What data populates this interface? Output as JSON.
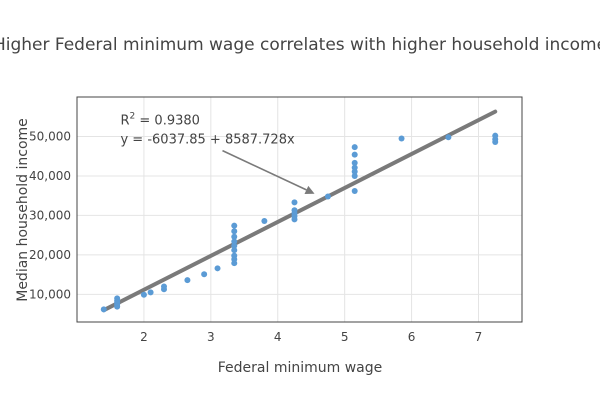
{
  "chart_data": {
    "type": "scatter",
    "title": "Higher Federal minimum wage correlates with higher household income",
    "xlabel": "Federal minimum wage",
    "ylabel": "Median household income",
    "xlim": [
      1.0,
      7.65
    ],
    "ylim": [
      3000,
      60000
    ],
    "x_ticks": [
      2,
      3,
      4,
      5,
      6,
      7
    ],
    "y_ticks": [
      10000,
      20000,
      30000,
      40000,
      50000
    ],
    "y_tick_labels": [
      "10,000",
      "20,000",
      "30,000",
      "40,000",
      "50,000"
    ],
    "grid": true,
    "legend": "none",
    "colors": {
      "points": "#5b9bd5",
      "trend_line": "#7a7a7a",
      "annotation_arrow": "#7a7a7a",
      "grid": "#e4e4e4",
      "text": "#444444"
    },
    "series": [
      {
        "points": [
          [
            1.4,
            6200
          ],
          [
            1.6,
            6900
          ],
          [
            1.6,
            7400
          ],
          [
            1.6,
            7900
          ],
          [
            1.6,
            8400
          ],
          [
            1.6,
            9000
          ],
          [
            2.0,
            9900
          ],
          [
            2.1,
            10500
          ],
          [
            2.3,
            11300
          ],
          [
            2.3,
            12000
          ],
          [
            2.65,
            13600
          ],
          [
            2.9,
            15100
          ],
          [
            3.1,
            16600
          ],
          [
            3.35,
            17900
          ],
          [
            3.35,
            18900
          ],
          [
            3.35,
            19800
          ],
          [
            3.35,
            21200
          ],
          [
            3.35,
            22300
          ],
          [
            3.35,
            23400
          ],
          [
            3.35,
            24600
          ],
          [
            3.35,
            26000
          ],
          [
            3.35,
            27400
          ],
          [
            3.8,
            28600
          ],
          [
            4.25,
            29000
          ],
          [
            4.25,
            29800
          ],
          [
            4.25,
            30500
          ],
          [
            4.25,
            31300
          ],
          [
            4.25,
            33300
          ],
          [
            4.75,
            34800
          ],
          [
            5.15,
            36200
          ],
          [
            5.15,
            40000
          ],
          [
            5.15,
            41100
          ],
          [
            5.15,
            42100
          ],
          [
            5.15,
            43300
          ],
          [
            5.15,
            45400
          ],
          [
            5.15,
            47300
          ],
          [
            5.85,
            49500
          ],
          [
            6.55,
            49800
          ],
          [
            7.25,
            48600
          ],
          [
            7.25,
            49300
          ],
          [
            7.25,
            50200
          ]
        ]
      }
    ],
    "trend_line": {
      "x": [
        1.4,
        7.25
      ],
      "y": [
        6000,
        56300
      ]
    },
    "annotation": {
      "r2_label": "R",
      "r2_sup": "2",
      "r2_value": " = 0.9380",
      "equation": "y   = -6037.85 + 8587.728x",
      "text_x": 1.65,
      "text_y": 53000,
      "arrow_to": [
        4.55,
        35500
      ]
    }
  }
}
